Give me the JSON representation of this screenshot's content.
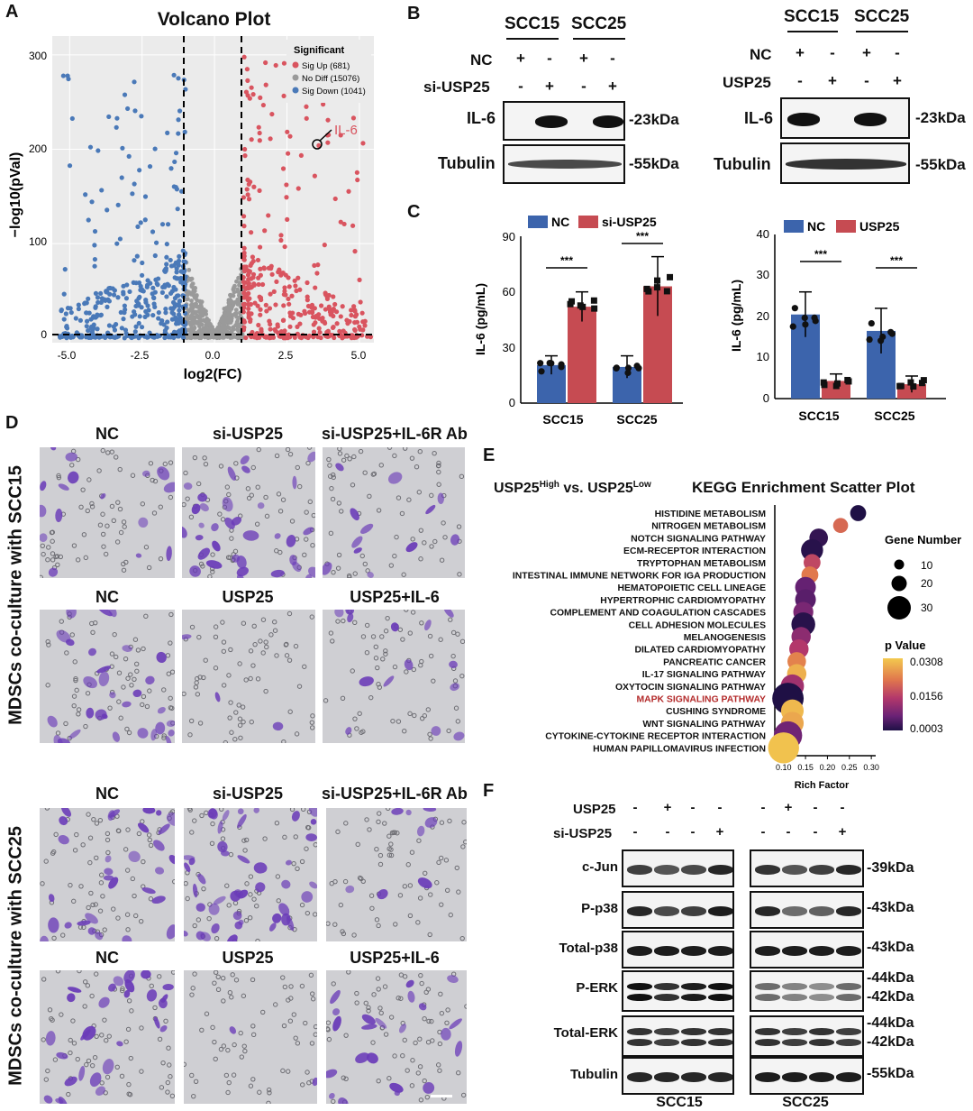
{
  "panels": {
    "A": "A",
    "B": "B",
    "C": "C",
    "D": "D",
    "E": "E",
    "F": "F"
  },
  "volcano": {
    "title": "Volcano Plot",
    "legend_title": "Significant",
    "legend": [
      {
        "label": "Sig Up (681)",
        "color": "#d9545f"
      },
      {
        "label": "No Diff (15076)",
        "color": "#9a9a9a"
      },
      {
        "label": "Sig Down (1041)",
        "color": "#4a79b8"
      }
    ],
    "highlight": "IL-6",
    "xlabel": "log2(FC)",
    "ylabel": "−log10(pVal)",
    "xticks": [
      "-5.0",
      "-2.5",
      "0.0",
      "2.5",
      "5.0"
    ],
    "yticks": [
      "0",
      "100",
      "200",
      "300"
    ]
  },
  "chart_data": [
    {
      "type": "scatter",
      "title": "Volcano Plot",
      "xlabel": "log2(FC)",
      "ylabel": "−log10(pVal)",
      "xlim": [
        -5.6,
        5.5
      ],
      "ylim": [
        -5,
        320
      ],
      "series": [
        {
          "name": "Sig Up (681)",
          "count": 681
        },
        {
          "name": "No Diff (15076)",
          "count": 15076
        },
        {
          "name": "Sig Down (1041)",
          "count": 1041
        }
      ],
      "annotations": [
        {
          "label": "IL-6",
          "x": 3.6,
          "y": 204
        }
      ],
      "thresholds": {
        "x": [
          -1,
          1
        ],
        "y": 0
      }
    },
    {
      "type": "bar",
      "categories": [
        "SCC15",
        "SCC25"
      ],
      "ylabel": "IL-6 (pg/mL)",
      "ylim": [
        0,
        90
      ],
      "series": [
        {
          "name": "NC",
          "values": [
            20.5,
            19.5
          ],
          "errors": [
            5,
            6
          ]
        },
        {
          "name": "si-USP25",
          "values": [
            52,
            63
          ],
          "errors": [
            8,
            16
          ]
        }
      ],
      "significance": [
        "***",
        "***"
      ]
    },
    {
      "type": "bar",
      "categories": [
        "SCC15",
        "SCC25"
      ],
      "ylabel": "IL-6 (pg/mL)",
      "ylim": [
        0,
        40
      ],
      "series": [
        {
          "name": "NC",
          "values": [
            20.5,
            16.5
          ],
          "errors": [
            5.5,
            5.5
          ]
        },
        {
          "name": "USP25",
          "values": [
            4.3,
            3.5
          ],
          "errors": [
            1.7,
            2
          ]
        }
      ],
      "significance": [
        "***",
        "***"
      ]
    },
    {
      "type": "scatter",
      "title": "KEGG Enrichment Scatter Plot",
      "xlabel": "Rich Factor",
      "xlim": [
        0.08,
        0.31
      ],
      "pathways": [
        {
          "name": "HISTIDINE METABOLISM",
          "rich": 0.27,
          "genes": 6,
          "p": 0.0003
        },
        {
          "name": "NITROGEN METABOLISM",
          "rich": 0.23,
          "genes": 5,
          "p": 0.02
        },
        {
          "name": "NOTCH SIGNALING PATHWAY",
          "rich": 0.18,
          "genes": 9,
          "p": 0.002
        },
        {
          "name": "ECM-RECEPTOR INTERACTION",
          "rich": 0.165,
          "genes": 14,
          "p": 0.001
        },
        {
          "name": "TRYPTOPHAN METABOLISM",
          "rich": 0.165,
          "genes": 7,
          "p": 0.016
        },
        {
          "name": "INTESTINAL IMMUNE NETWORK FOR IGA PRODUCTION",
          "rich": 0.16,
          "genes": 7,
          "p": 0.022
        },
        {
          "name": "HEMATOPOIETIC CELL LINEAGE",
          "rich": 0.15,
          "genes": 12,
          "p": 0.006
        },
        {
          "name": "HYPERTROPHIC CARDIOMYOPATHY",
          "rich": 0.15,
          "genes": 12,
          "p": 0.005
        },
        {
          "name": "COMPLEMENT AND COAGULATION CASCADES",
          "rich": 0.145,
          "genes": 11,
          "p": 0.008
        },
        {
          "name": "CELL ADHESION MOLECULES",
          "rich": 0.145,
          "genes": 17,
          "p": 0.001
        },
        {
          "name": "MELANOGENESIS",
          "rich": 0.14,
          "genes": 10,
          "p": 0.01
        },
        {
          "name": "DILATED CARDIOMYOPATHY",
          "rich": 0.135,
          "genes": 10,
          "p": 0.014
        },
        {
          "name": "PANCREATIC CANCER",
          "rich": 0.13,
          "genes": 9,
          "p": 0.023
        },
        {
          "name": "IL-17 SIGNALING PATHWAY",
          "rich": 0.13,
          "genes": 10,
          "p": 0.028
        },
        {
          "name": "OXYTOCIN SIGNALING PATHWAY",
          "rich": 0.12,
          "genes": 16,
          "p": 0.012
        },
        {
          "name": "MAPK SIGNALING PATHWAY",
          "rich": 0.11,
          "genes": 33,
          "p": 0.0003
        },
        {
          "name": "CUSHING SYNDROME",
          "rich": 0.12,
          "genes": 15,
          "p": 0.029
        },
        {
          "name": "WNT SIGNALING PATHWAY",
          "rich": 0.12,
          "genes": 15,
          "p": 0.027
        },
        {
          "name": "CYTOKINE-CYTOKINE RECEPTOR INTERACTION",
          "rich": 0.11,
          "genes": 26,
          "p": 0.007
        },
        {
          "name": "HUMAN PAPILLOMAVIRUS INFECTION",
          "rich": 0.1,
          "genes": 32,
          "p": 0.03
        }
      ]
    }
  ],
  "blotB": {
    "left": {
      "cells": [
        "SCC15",
        "SCC25"
      ],
      "row1": "NC",
      "row2": "si-USP25",
      "marks1": [
        "+",
        "-",
        "+",
        "-"
      ],
      "marks2": [
        "-",
        "+",
        "-",
        "+"
      ],
      "il6": "IL-6",
      "tub": "Tubulin",
      "kd1": "-23kDa",
      "kd2": "-55kDa"
    },
    "right": {
      "cells": [
        "SCC15",
        "SCC25"
      ],
      "row1": "NC",
      "row2": "USP25",
      "marks1": [
        "+",
        "-",
        "+",
        "-"
      ],
      "marks2": [
        "-",
        "+",
        "-",
        "+"
      ],
      "il6": "IL-6",
      "tub": "Tubulin",
      "kd1": "-23kDa",
      "kd2": "-55kDa"
    }
  },
  "barsC": {
    "left": {
      "leg1": "NC",
      "leg2": "si-USP25",
      "ylabel": "IL-6 (pg/mL)",
      "yticks": [
        "0",
        "30",
        "60",
        "90"
      ],
      "cats": [
        "SCC15",
        "SCC25"
      ],
      "sig": "***",
      "c1": "#3c64ac",
      "c2": "#c64b52"
    },
    "right": {
      "leg1": "NC",
      "leg2": "USP25",
      "ylabel": "IL-6 (pg/mL)",
      "yticks": [
        "0",
        "10",
        "20",
        "30",
        "40"
      ],
      "cats": [
        "SCC15",
        "SCC25"
      ],
      "sig": "***",
      "c1": "#3c64ac",
      "c2": "#c64b52"
    }
  },
  "panelD": {
    "side1": "MDSCs co-culture with SCC15",
    "side2": "MDSCs co-culture with SCC25",
    "row1": [
      "NC",
      "si-USP25",
      "si-USP25+IL-6R Ab"
    ],
    "row2": [
      "NC",
      "USP25",
      "USP25+IL-6"
    ],
    "row3": [
      "NC",
      "si-USP25",
      "si-USP25+IL-6R Ab"
    ],
    "row4": [
      "NC",
      "USP25",
      "USP25+IL-6"
    ]
  },
  "kegg": {
    "heading_a": "USP25",
    "sup_high": "High",
    "vs": "vs. USP25",
    "sup_low": "Low",
    "title": "KEGG Enrichment Scatter Plot",
    "xlabel": "Rich Factor",
    "xticks": [
      "0.10",
      "0.15",
      "0.20",
      "0.25",
      "0.30"
    ],
    "size_title": "Gene Number",
    "sizes": [
      "10",
      "20",
      "30"
    ],
    "p_title": "p Value",
    "p_ticks": [
      "0.0308",
      "0.0156",
      "0.0003"
    ],
    "highlight_color": "#b32a2a"
  },
  "blotF": {
    "rowA": "USP25",
    "rowB": "si-USP25",
    "marksA": [
      "-",
      "+",
      "-",
      "-"
    ],
    "marksB": [
      "-",
      "-",
      "-",
      "+"
    ],
    "proteins": [
      "c-Jun",
      "P-p38",
      "Total-p38",
      "P-ERK",
      "Total-ERK",
      "Tubulin"
    ],
    "kda": [
      "-39kDa",
      "-43kDa",
      "-43kDa",
      "-44kDa",
      "-42kDa",
      "-44kDa",
      "-42kDa",
      "-55kDa"
    ],
    "cells": [
      "SCC15",
      "SCC25"
    ]
  }
}
